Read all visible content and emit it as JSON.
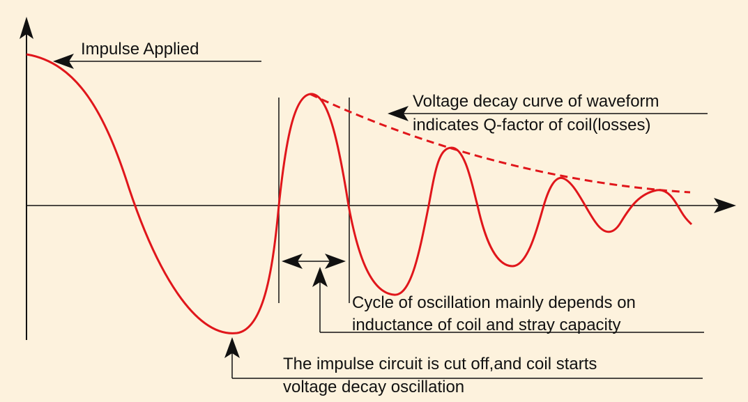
{
  "colors": {
    "background": "#fdf2dd",
    "waveform": "#e0161b",
    "decay_curve": "#e0161b",
    "ink": "#111111"
  },
  "annotations": {
    "impulse_applied": "Impulse Applied",
    "decay_line1": "Voltage decay curve of waveform",
    "decay_line2": "indicates Q-factor of coil(losses)",
    "cycle_line1": "Cycle of oscillation mainly depends on",
    "cycle_line2": "inductance of coil and stray capacity",
    "cutoff_line1": "The impulse circuit is cut off,and coil starts",
    "cutoff_line2": "voltage decay oscillation"
  }
}
